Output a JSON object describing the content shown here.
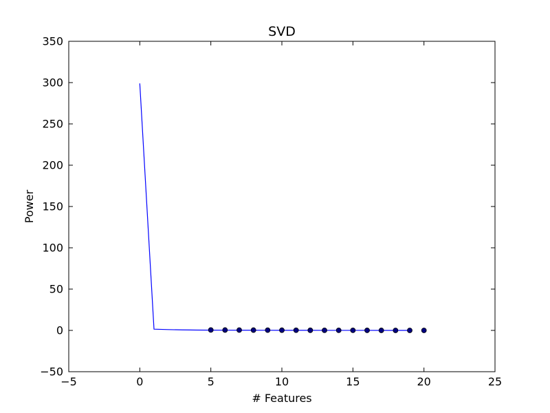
{
  "chart_data": {
    "type": "line",
    "title": "SVD",
    "xlabel": "# Features",
    "ylabel": "Power",
    "xlim": [
      -5,
      25
    ],
    "ylim": [
      -50,
      350
    ],
    "xticks": [
      -5,
      0,
      5,
      10,
      15,
      20,
      25
    ],
    "yticks": [
      -50,
      0,
      50,
      100,
      150,
      200,
      250,
      300,
      350
    ],
    "grid": false,
    "legend": "none",
    "series": [
      {
        "style": "line",
        "color": "#0000ff",
        "x": [
          0,
          1,
          2,
          3,
          4,
          5,
          6,
          7,
          8,
          9,
          10,
          11,
          12,
          13,
          14,
          15,
          16,
          17,
          18,
          19
        ],
        "y": [
          299,
          1.5,
          1.0,
          0.6,
          0.4,
          0.3,
          0.25,
          0.2,
          0.18,
          0.15,
          0.13,
          0.1,
          0.08,
          0.06,
          0.05,
          0.04,
          0.03,
          0.02,
          0.01,
          0.0
        ]
      },
      {
        "style": "scatter",
        "color": "#000080",
        "x": [
          5,
          6,
          7,
          8,
          9,
          10,
          11,
          12,
          13,
          14,
          15,
          16,
          17,
          18,
          19,
          20
        ],
        "y": [
          0.5,
          0.45,
          0.4,
          0.35,
          0.3,
          0.25,
          0.2,
          0.15,
          0.12,
          0.1,
          0.08,
          0.06,
          0.04,
          0.02,
          0.01,
          0.0
        ]
      }
    ]
  }
}
